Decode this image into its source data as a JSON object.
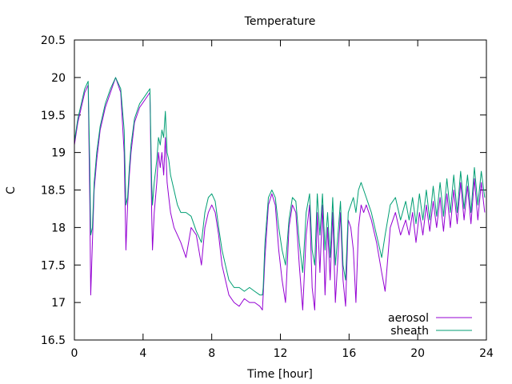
{
  "chart_data": {
    "type": "line",
    "title": "Temperature",
    "xlabel": "Time [hour]",
    "ylabel": "C",
    "xlim": [
      0,
      24
    ],
    "ylim": [
      16.5,
      20.5
    ],
    "xticks": [
      0,
      4,
      8,
      12,
      16,
      20,
      24
    ],
    "yticks": [
      16.5,
      17,
      17.5,
      18,
      18.5,
      19,
      19.5,
      20,
      20.5
    ],
    "grid": false,
    "legend_position": "bottom-right",
    "series": [
      {
        "name": "aerosol",
        "color": "#9400d3",
        "x": [
          0,
          0.2,
          0.4,
          0.6,
          0.8,
          0.9,
          0.95,
          1.05,
          1.15,
          1.3,
          1.5,
          1.8,
          2.1,
          2.4,
          2.7,
          2.9,
          3.0,
          3.1,
          3.2,
          3.3,
          3.5,
          3.8,
          4.1,
          4.4,
          4.5,
          4.55,
          4.65,
          4.8,
          4.9,
          5.0,
          5.1,
          5.2,
          5.3,
          5.4,
          5.5,
          5.6,
          5.8,
          6.0,
          6.2,
          6.5,
          6.8,
          7.1,
          7.4,
          7.6,
          7.8,
          8.0,
          8.2,
          8.4,
          8.6,
          8.8,
          9.0,
          9.3,
          9.6,
          9.9,
          10.2,
          10.5,
          10.8,
          10.95,
          11.0,
          11.1,
          11.3,
          11.5,
          11.7,
          11.9,
          12.1,
          12.3,
          12.5,
          12.7,
          12.9,
          13.1,
          13.3,
          13.5,
          13.7,
          13.85,
          14.0,
          14.15,
          14.3,
          14.45,
          14.6,
          14.75,
          14.9,
          15.05,
          15.2,
          15.35,
          15.5,
          15.65,
          15.8,
          15.95,
          16.1,
          16.25,
          16.4,
          16.55,
          16.7,
          16.85,
          17.0,
          17.3,
          17.6,
          17.9,
          18.1,
          18.4,
          18.7,
          19.0,
          19.3,
          19.5,
          19.7,
          19.9,
          20.1,
          20.3,
          20.5,
          20.7,
          20.9,
          21.1,
          21.3,
          21.5,
          21.7,
          21.9,
          22.1,
          22.3,
          22.5,
          22.7,
          22.9,
          23.1,
          23.3,
          23.5,
          23.7,
          23.9
        ],
        "y": [
          19.1,
          19.4,
          19.6,
          19.8,
          19.9,
          18.3,
          17.1,
          17.8,
          18.5,
          18.9,
          19.3,
          19.6,
          19.8,
          20.0,
          19.8,
          19.0,
          17.7,
          18.3,
          18.7,
          19.0,
          19.4,
          19.6,
          19.7,
          19.8,
          18.2,
          17.7,
          18.2,
          18.6,
          19.0,
          18.8,
          19.0,
          18.7,
          19.2,
          18.6,
          18.4,
          18.2,
          18.0,
          17.9,
          17.8,
          17.6,
          18.0,
          17.9,
          17.5,
          18.0,
          18.2,
          18.3,
          18.2,
          17.9,
          17.5,
          17.3,
          17.1,
          17.0,
          16.95,
          17.05,
          17.0,
          17.0,
          16.95,
          16.9,
          17.1,
          17.6,
          18.3,
          18.45,
          18.3,
          17.7,
          17.3,
          17.0,
          18.0,
          18.3,
          18.2,
          17.5,
          16.9,
          17.9,
          18.3,
          17.2,
          16.9,
          18.2,
          17.4,
          18.3,
          17.1,
          18.0,
          17.3,
          18.2,
          17.0,
          17.6,
          18.2,
          17.3,
          16.95,
          18.1,
          18.0,
          17.7,
          17.0,
          18.0,
          18.3,
          18.2,
          18.3,
          18.1,
          17.8,
          17.4,
          17.15,
          18.0,
          18.2,
          17.9,
          18.1,
          17.9,
          18.2,
          17.8,
          18.2,
          17.9,
          18.3,
          17.95,
          18.35,
          18.0,
          18.4,
          17.95,
          18.45,
          18.0,
          18.5,
          18.05,
          18.6,
          18.1,
          18.55,
          18.05,
          18.65,
          18.1,
          18.6,
          18.2
        ]
      },
      {
        "name": "sheath",
        "color": "#009e73",
        "x": [
          0,
          0.2,
          0.4,
          0.6,
          0.8,
          0.9,
          0.95,
          1.05,
          1.15,
          1.3,
          1.5,
          1.8,
          2.1,
          2.4,
          2.7,
          2.9,
          3.0,
          3.1,
          3.2,
          3.3,
          3.5,
          3.8,
          4.1,
          4.4,
          4.5,
          4.55,
          4.65,
          4.8,
          4.9,
          5.0,
          5.1,
          5.2,
          5.3,
          5.4,
          5.5,
          5.6,
          5.8,
          6.0,
          6.2,
          6.5,
          6.8,
          7.1,
          7.4,
          7.6,
          7.8,
          8.0,
          8.2,
          8.4,
          8.6,
          8.8,
          9.0,
          9.3,
          9.6,
          9.9,
          10.2,
          10.5,
          10.8,
          10.95,
          11.0,
          11.1,
          11.3,
          11.5,
          11.7,
          11.9,
          12.1,
          12.3,
          12.5,
          12.7,
          12.9,
          13.1,
          13.3,
          13.5,
          13.7,
          13.85,
          14.0,
          14.15,
          14.3,
          14.45,
          14.6,
          14.75,
          14.9,
          15.05,
          15.2,
          15.35,
          15.5,
          15.65,
          15.8,
          15.95,
          16.1,
          16.25,
          16.4,
          16.55,
          16.7,
          16.85,
          17.0,
          17.3,
          17.6,
          17.9,
          18.1,
          18.4,
          18.7,
          19.0,
          19.3,
          19.5,
          19.7,
          19.9,
          20.1,
          20.3,
          20.5,
          20.7,
          20.9,
          21.1,
          21.3,
          21.5,
          21.7,
          21.9,
          22.1,
          22.3,
          22.5,
          22.7,
          22.9,
          23.1,
          23.3,
          23.5,
          23.7,
          23.9
        ],
        "y": [
          19.15,
          19.45,
          19.65,
          19.85,
          19.95,
          18.8,
          17.9,
          18.0,
          18.6,
          19.0,
          19.35,
          19.65,
          19.85,
          20.0,
          19.85,
          19.3,
          18.3,
          18.4,
          18.8,
          19.1,
          19.45,
          19.65,
          19.75,
          19.85,
          18.6,
          18.3,
          18.6,
          18.9,
          19.2,
          19.1,
          19.3,
          19.2,
          19.55,
          19.0,
          18.9,
          18.7,
          18.5,
          18.3,
          18.2,
          18.2,
          18.15,
          17.95,
          17.8,
          18.2,
          18.4,
          18.45,
          18.35,
          18.0,
          17.7,
          17.5,
          17.3,
          17.2,
          17.2,
          17.15,
          17.2,
          17.15,
          17.1,
          17.1,
          17.2,
          17.8,
          18.4,
          18.5,
          18.4,
          18.0,
          17.7,
          17.5,
          18.1,
          18.4,
          18.35,
          17.8,
          17.4,
          18.2,
          18.45,
          17.7,
          17.5,
          18.45,
          17.9,
          18.45,
          17.7,
          18.2,
          17.6,
          18.4,
          17.5,
          17.9,
          18.35,
          17.5,
          17.3,
          18.2,
          18.3,
          18.4,
          18.2,
          18.5,
          18.6,
          18.5,
          18.4,
          18.2,
          17.9,
          17.6,
          17.9,
          18.3,
          18.4,
          18.1,
          18.35,
          18.1,
          18.4,
          18.05,
          18.45,
          18.1,
          18.5,
          18.1,
          18.55,
          18.15,
          18.6,
          18.15,
          18.65,
          18.2,
          18.7,
          18.2,
          18.75,
          18.25,
          18.7,
          18.2,
          18.8,
          18.3,
          18.75,
          18.4
        ]
      }
    ]
  }
}
